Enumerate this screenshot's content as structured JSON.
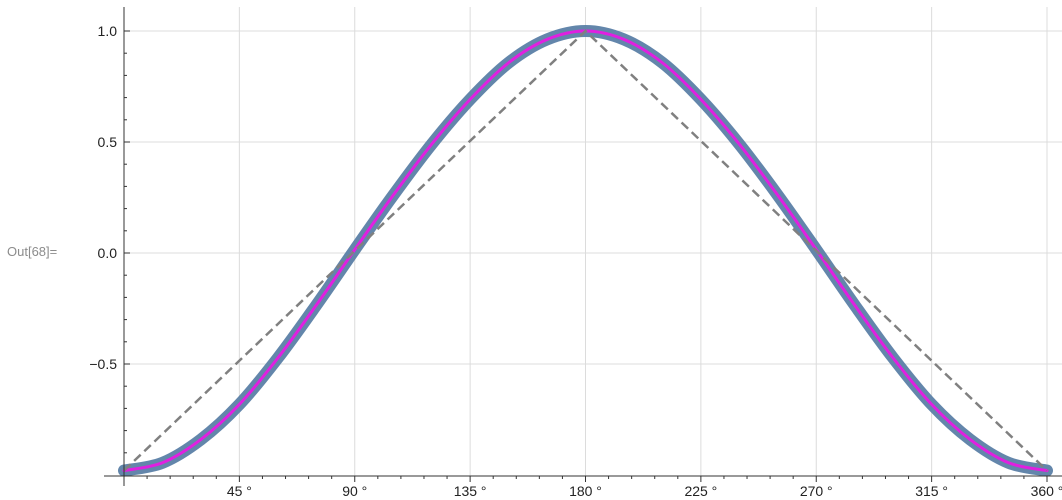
{
  "cell_label": "Out[68]=",
  "chart_data": {
    "type": "line",
    "title": "",
    "xlabel": "",
    "ylabel": "",
    "xlim": [
      0,
      360
    ],
    "ylim": [
      -0.98,
      1.1
    ],
    "x_ticks": [
      45,
      90,
      135,
      180,
      225,
      270,
      315,
      360
    ],
    "x_tick_labels": [
      "45 °",
      "90 °",
      "135 °",
      "180 °",
      "225 °",
      "270 °",
      "315 °",
      "360 °"
    ],
    "y_ticks": [
      1.0,
      0.5,
      0.0,
      -0.5
    ],
    "y_tick_labels": [
      "1.0",
      "0.5",
      "0.0",
      "−0.5"
    ],
    "grid": true,
    "series": [
      {
        "style": "thick-band",
        "color": "#5b7fa6",
        "x": [
          0,
          15,
          30,
          45,
          60,
          75,
          90,
          105,
          120,
          135,
          150,
          165,
          180,
          195,
          210,
          225,
          240,
          255,
          270,
          285,
          300,
          315,
          330,
          345,
          360
        ],
        "y": [
          -0.98,
          -0.945,
          -0.84,
          -0.682,
          -0.473,
          -0.235,
          0.015,
          0.26,
          0.49,
          0.692,
          0.857,
          0.962,
          1.0,
          0.962,
          0.857,
          0.692,
          0.49,
          0.26,
          0.015,
          -0.235,
          -0.473,
          -0.682,
          -0.84,
          -0.945,
          -0.98
        ]
      },
      {
        "style": "solid",
        "color": "#e020e0",
        "x": [
          0,
          15,
          30,
          45,
          60,
          75,
          90,
          105,
          120,
          135,
          150,
          165,
          180,
          195,
          210,
          225,
          240,
          255,
          270,
          285,
          300,
          315,
          330,
          345,
          360
        ],
        "y": [
          -0.98,
          -0.945,
          -0.84,
          -0.682,
          -0.473,
          -0.235,
          0.015,
          0.26,
          0.49,
          0.692,
          0.857,
          0.962,
          1.0,
          0.962,
          0.857,
          0.692,
          0.49,
          0.26,
          0.015,
          -0.235,
          -0.473,
          -0.682,
          -0.84,
          -0.945,
          -0.98
        ]
      },
      {
        "style": "dashed",
        "color": "#808080",
        "x": [
          0,
          180,
          360
        ],
        "y": [
          -0.98,
          1.0,
          -0.98
        ]
      }
    ]
  }
}
